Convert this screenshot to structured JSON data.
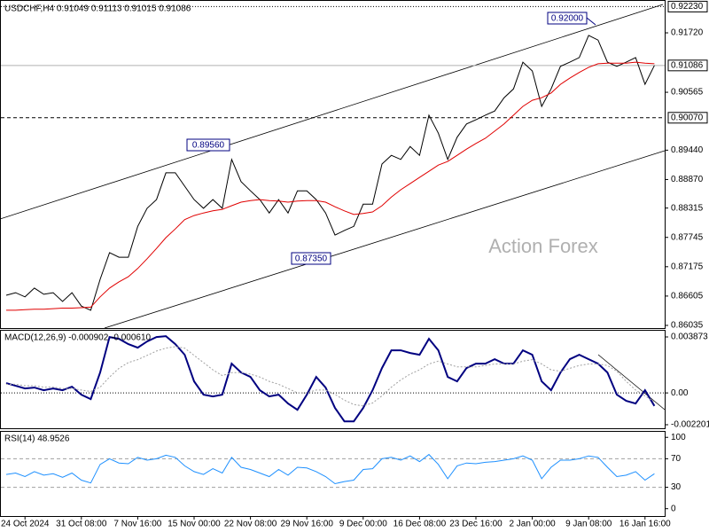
{
  "chart_data": [
    {
      "type": "line",
      "title": "USDCHF,H4  0.91049 0.91113 0.91015 0.91086",
      "categories": [
        null,
        null,
        "24 Oct 2024",
        null,
        null,
        null,
        null,
        null,
        "31 Oct 08:00",
        null,
        null,
        null,
        null,
        null,
        "7 Nov 16:00",
        null,
        null,
        null,
        null,
        null,
        "15 Nov 00:00",
        null,
        null,
        null,
        null,
        null,
        "22 Nov 08:00",
        null,
        null,
        null,
        null,
        null,
        "29 Nov 16:00",
        null,
        null,
        null,
        null,
        null,
        "9 Dec 00:00",
        null,
        null,
        null,
        null,
        null,
        "16 Dec 08:00",
        null,
        null,
        null,
        null,
        null,
        "23 Dec 16:00",
        null,
        null,
        null,
        null,
        null,
        "2 Jan 00:00",
        null,
        null,
        null,
        null,
        null,
        "9 Jan 08:00",
        null,
        null,
        null,
        null,
        null,
        "16 Jan 16:00",
        null
      ],
      "series": [
        {
          "color": "#000000",
          "values": [
            0.8662,
            0.8667,
            0.8659,
            0.8676,
            0.8664,
            0.8667,
            0.865,
            0.8667,
            0.8641,
            0.8633,
            0.8693,
            0.8745,
            0.8736,
            0.8736,
            0.8796,
            0.8831,
            0.8848,
            0.89,
            0.89,
            0.8874,
            0.8848,
            0.8831,
            0.8848,
            0.8831,
            0.8926,
            0.8883,
            0.8865,
            0.8848,
            0.8822,
            0.8848,
            0.8822,
            0.8865,
            0.8865,
            0.8848,
            0.8822,
            0.8779,
            0.8788,
            0.8796,
            0.8839,
            0.8839,
            0.8917,
            0.8934,
            0.8926,
            0.8951,
            0.8934,
            0.9012,
            0.8977,
            0.8926,
            0.8969,
            0.8995,
            0.9003,
            0.9012,
            0.902,
            0.9046,
            0.9063,
            0.9115,
            0.9098,
            0.9029,
            0.9063,
            0.9107,
            0.9115,
            0.9124,
            0.9167,
            0.9158,
            0.9115,
            0.9107,
            0.9115,
            0.9124,
            0.9072,
            0.91086
          ]
        },
        {
          "color": "#e00000",
          "values": [
            0.8633,
            0.8633,
            0.8634,
            0.8635,
            0.8635,
            0.8636,
            0.8637,
            0.8637,
            0.8638,
            0.8639,
            0.8659,
            0.8676,
            0.8688,
            0.8698,
            0.8714,
            0.8733,
            0.8753,
            0.8774,
            0.8791,
            0.8809,
            0.8817,
            0.8822,
            0.8826,
            0.8829,
            0.8836,
            0.8843,
            0.8846,
            0.8848,
            0.8846,
            0.8845,
            0.8843,
            0.8845,
            0.8846,
            0.8846,
            0.8843,
            0.8834,
            0.8826,
            0.8819,
            0.8821,
            0.8824,
            0.8836,
            0.8853,
            0.8867,
            0.8879,
            0.8891,
            0.8903,
            0.8915,
            0.8922,
            0.8934,
            0.8946,
            0.8957,
            0.8967,
            0.8981,
            0.8995,
            0.9012,
            0.9029,
            0.9041,
            0.9046,
            0.9055,
            0.9072,
            0.9084,
            0.9095,
            0.9105,
            0.9112,
            0.9113,
            0.9113,
            0.9113,
            0.9115,
            0.9113,
            0.9112
          ]
        }
      ],
      "ylim": [
        0.85983,
        0.92358
      ],
      "yticks": [
        {
          "value": 0.9172,
          "label": "0.91720"
        },
        0.90565,
        {
          "value": 0.8944,
          "label": "0.89440"
        },
        {
          "value": 0.8887,
          "label": "0.88870"
        },
        0.88315,
        0.87745,
        0.87175,
        0.86605,
        0.86035
      ],
      "levels": [
        {
          "value": 0.9223,
          "label": "0.92230",
          "style": "dotted"
        },
        {
          "value": 0.91086,
          "label": "0.91086",
          "style": "solid"
        },
        {
          "value": 0.9007,
          "label": "0.90070",
          "style": "dashed"
        }
      ],
      "annotations": [
        "0.92000",
        "0.89560",
        "0.87350"
      ],
      "watermark": "Action Forex"
    },
    {
      "type": "line",
      "title": "MACD(12,26,9) -0.000902 -0.000610",
      "series": [
        {
          "color": "#000080",
          "values": [
            0.000675,
            0.000491,
            0.000307,
            0.000368,
            0.000184,
            0.000307,
            0.000184,
            0.00043,
            -0.000123,
            -0.00043,
            0.001412,
            0.003868,
            0.003745,
            0.003377,
            0.003131,
            0.003561,
            0.003868,
            0.00393,
            0.003377,
            0.00264,
            0.000798,
            -0.000123,
            -0.000246,
            -0.000123,
            0.002026,
            0.001412,
            0.001105,
            0.000184,
            -0.000246,
            -0.000123,
            -0.000737,
            -0.001167,
            -0.000123,
            0.001105,
            0.000368,
            -0.001044,
            -0.001965,
            -0.001965,
            -0.001044,
            0.000184,
            0.001719,
            0.002947,
            0.002947,
            0.002763,
            0.00264,
            0.003745,
            0.002947,
            0.001105,
            0.000798,
            0.001719,
            0.002026,
            0.002026,
            0.002333,
            0.002026,
            0.002026,
            0.002947,
            0.00264,
            0.000798,
            0.000184,
            0.001412,
            0.002333,
            0.00264,
            0.002333,
            0.002026,
            0.001412,
            -0.000123,
            -0.000553,
            -0.000737,
            0.000184,
            -0.000902
          ]
        },
        {
          "color": "#a0a0a0",
          "values": [
            0.0006,
            0.0006,
            0.0005,
            0.0005,
            0.0004,
            0.0004,
            0.0003,
            0.0003,
            0.0002,
            0.0001,
            0.0004,
            0.0011,
            0.0017,
            0.0021,
            0.0023,
            0.0026,
            0.0029,
            0.0031,
            0.0032,
            0.0031,
            0.0026,
            0.0021,
            0.0016,
            0.0012,
            0.0014,
            0.0014,
            0.0013,
            0.0011,
            0.0008,
            0.0006,
            0.0003,
            0,
            0,
            0.0002,
            0.0002,
            -0.0001,
            -0.0005,
            -0.0008,
            -0.0009,
            -0.0007,
            -0.0002,
            0.0004,
            0.0009,
            0.0013,
            0.0016,
            0.002,
            0.0022,
            0.002,
            0.0018,
            0.0018,
            0.0018,
            0.0019,
            0.002,
            0.002,
            0.002,
            0.0022,
            0.0023,
            0.002,
            0.0016,
            0.0015,
            0.0017,
            0.0019,
            0.002,
            0.002,
            0.0019,
            0.0015,
            0.0008,
            0.0002,
            -0.0002,
            -0.00061
          ]
        }
      ],
      "ylim": [
        -0.002446,
        0.004303
      ],
      "yticks": [
        0.003873,
        {
          "value": 0,
          "label": "0.00"
        },
        -0.002201
      ],
      "levels": [
        0
      ]
    },
    {
      "type": "line",
      "title": "RSI(14) 48.9526",
      "series": [
        {
          "color": "#1e90ff",
          "values": [
            48,
            50,
            45,
            52,
            47,
            49,
            44,
            50,
            40,
            36,
            62,
            70,
            64,
            63,
            72,
            68,
            70,
            75,
            72,
            60,
            52,
            48,
            56,
            50,
            72,
            58,
            55,
            50,
            45,
            55,
            47,
            58,
            57,
            52,
            45,
            35,
            38,
            40,
            55,
            56,
            70,
            72,
            68,
            74,
            66,
            76,
            62,
            42,
            60,
            64,
            63,
            65,
            66,
            68,
            70,
            74,
            68,
            42,
            58,
            68,
            68,
            70,
            74,
            72,
            58,
            45,
            47,
            52,
            40,
            48.9526
          ]
        }
      ],
      "ylim": [
        -10.3,
        109
      ],
      "yticks": [
        100,
        70,
        30,
        0
      ],
      "levels": [
        70,
        30
      ]
    }
  ]
}
